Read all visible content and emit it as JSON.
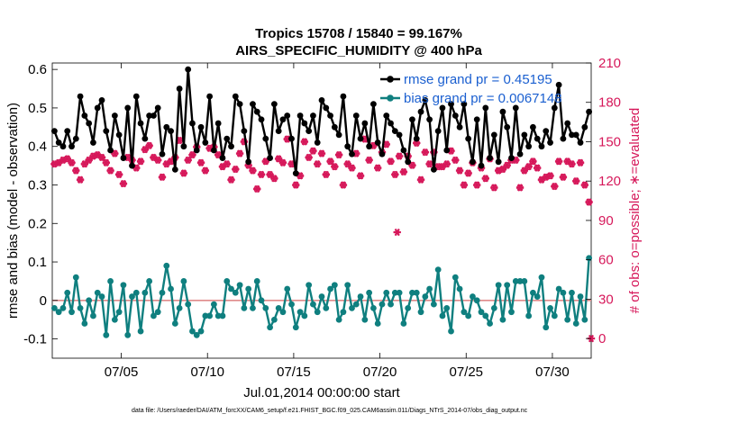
{
  "chart_data": {
    "type": "line",
    "title_line1": "Tropics 15708 / 15840 = 99.167%",
    "title_line2": "AIRS_SPECIFIC_HUMIDITY @ 400 hPa",
    "xlabel": "Jul.01,2014 00:00:00 start",
    "ylabel_left": "rmse and bias (model - observation)",
    "ylabel_right": "# of obs: o=possible; ∗=evaluated",
    "footer": "data file: /Users/raeder/DAI/ATM_forcXX/CAM6_setup/f.e21.FHIST_BGC.f09_025.CAM6assim.011/Diags_NTrS_2014-07/obs_diag_output.nc",
    "xlim": [
      1.0,
      32.25
    ],
    "ylim_left": [
      -0.15,
      0.6167
    ],
    "ylim_right": [
      -15,
      210
    ],
    "x_ticks": [
      5,
      10,
      15,
      20,
      25,
      30
    ],
    "x_tick_labels": [
      "07/05",
      "07/10",
      "07/15",
      "07/20",
      "07/25",
      "07/30"
    ],
    "y_ticks_left": [
      -0.1,
      0,
      0.1,
      0.2,
      0.3,
      0.4,
      0.5,
      0.6
    ],
    "y_tick_labels_left": [
      "-0.1",
      "0",
      "0.1",
      "0.2",
      "0.3",
      "0.4",
      "0.5",
      "0.6"
    ],
    "y_ticks_right": [
      0,
      30,
      60,
      90,
      120,
      150,
      180,
      210
    ],
    "y_tick_labels_right": [
      "0",
      "30",
      "60",
      "90",
      "120",
      "150",
      "180",
      "210"
    ],
    "zero_line": 0,
    "colors": {
      "rmse": "#000000",
      "bias": "#0f7f7f",
      "obs": "#d6185a",
      "legend_text": "#1a5fd0",
      "zero": "#e08a8a"
    },
    "legend": [
      {
        "label": "rmse grand pr = 0.45195",
        "series": "rmse"
      },
      {
        "label": "bias grand pr = 0.0067148",
        "series": "bias"
      }
    ],
    "series": [
      {
        "name": "rmse",
        "axis": "left",
        "x_start": 1.125,
        "x_step": 0.25,
        "values": [
          0.44,
          0.41,
          0.4,
          0.44,
          0.4,
          0.42,
          0.53,
          0.48,
          0.46,
          0.41,
          0.5,
          0.52,
          0.44,
          0.39,
          0.48,
          0.43,
          0.37,
          0.5,
          0.35,
          0.53,
          0.46,
          0.42,
          0.48,
          0.48,
          0.5,
          0.38,
          0.45,
          0.44,
          0.34,
          0.55,
          0.4,
          0.6,
          0.46,
          0.39,
          0.45,
          0.41,
          0.53,
          0.39,
          0.46,
          0.37,
          0.42,
          0.4,
          0.53,
          0.51,
          0.44,
          0.36,
          0.51,
          0.49,
          0.47,
          0.42,
          0.37,
          0.51,
          0.44,
          0.47,
          0.48,
          0.42,
          0.33,
          0.48,
          0.46,
          0.44,
          0.48,
          0.41,
          0.52,
          0.5,
          0.48,
          0.45,
          0.43,
          0.53,
          0.4,
          0.38,
          0.48,
          0.42,
          0.46,
          0.4,
          0.51,
          0.41,
          0.38,
          0.48,
          0.46,
          0.44,
          0.43,
          0.39,
          0.36,
          0.47,
          0.42,
          0.49,
          0.52,
          0.47,
          0.34,
          0.44,
          0.5,
          0.39,
          0.51,
          0.48,
          0.45,
          0.51,
          0.42,
          0.36,
          0.47,
          0.35,
          0.5,
          0.37,
          0.43,
          0.36,
          0.49,
          0.45,
          0.37,
          0.5,
          0.38,
          0.43,
          0.4,
          0.45,
          0.42,
          0.4,
          0.44,
          0.41,
          0.5,
          0.56,
          0.42,
          0.46,
          0.43,
          0.43,
          0.41,
          0.45,
          0.49
        ]
      },
      {
        "name": "bias",
        "axis": "left",
        "x_start": 1.125,
        "x_step": 0.25,
        "values": [
          -0.02,
          -0.03,
          -0.02,
          0.02,
          -0.03,
          0.06,
          -0.02,
          -0.06,
          0.0,
          -0.04,
          0.02,
          0.01,
          -0.09,
          0.05,
          -0.05,
          -0.03,
          0.04,
          -0.09,
          0.01,
          0.02,
          -0.08,
          0.02,
          0.05,
          -0.04,
          -0.03,
          0.02,
          0.09,
          0.03,
          -0.06,
          -0.02,
          0.05,
          -0.01,
          -0.08,
          -0.09,
          -0.08,
          -0.04,
          -0.04,
          -0.01,
          -0.04,
          -0.04,
          0.05,
          0.03,
          0.02,
          0.04,
          -0.02,
          0.03,
          -0.02,
          0.05,
          0.0,
          -0.02,
          -0.07,
          -0.05,
          -0.02,
          -0.03,
          0.03,
          -0.01,
          -0.07,
          -0.03,
          -0.04,
          0.04,
          -0.01,
          -0.03,
          0.01,
          -0.02,
          0.03,
          0.04,
          -0.05,
          -0.03,
          0.04,
          -0.02,
          -0.01,
          0.01,
          -0.05,
          0.02,
          -0.02,
          -0.06,
          -0.01,
          0.02,
          -0.01,
          0.02,
          0.02,
          -0.06,
          -0.02,
          0.02,
          0.02,
          -0.03,
          0.01,
          0.03,
          -0.01,
          0.08,
          -0.04,
          -0.02,
          -0.08,
          0.06,
          0.03,
          -0.03,
          -0.04,
          0.01,
          0.0,
          -0.03,
          -0.04,
          -0.06,
          -0.02,
          0.04,
          -0.05,
          0.04,
          -0.03,
          0.05,
          0.05,
          0.05,
          -0.04,
          0.02,
          0.01,
          0.06,
          -0.07,
          -0.02,
          -0.04,
          0.03,
          0.02,
          -0.05,
          0.02,
          -0.06,
          0.01,
          -0.05,
          0.11
        ]
      },
      {
        "name": "obs_possible",
        "axis": "right",
        "marker": "o",
        "x_start": 1.125,
        "x_step": 0.25,
        "values": [
          133,
          134,
          136,
          137,
          134,
          128,
          121,
          133,
          136,
          139,
          140,
          138,
          134,
          128,
          141,
          125,
          118,
          138,
          136,
          130,
          135,
          144,
          147,
          138,
          136,
          123,
          133,
          135,
          138,
          151,
          126,
          136,
          140,
          146,
          134,
          128,
          145,
          146,
          140,
          131,
          133,
          121,
          129,
          141,
          150,
          132,
          128,
          114,
          125,
          135,
          125,
          122,
          137,
          134,
          152,
          133,
          117,
          124,
          150,
          138,
          143,
          133,
          141,
          125,
          135,
          131,
          140,
          117,
          133,
          130,
          141,
          124,
          152,
          136,
          147,
          130,
          142,
          148,
          135,
          125,
          139,
          127,
          139,
          132,
          149,
          121,
          142,
          133,
          142,
          131,
          131,
          133,
          143,
          136,
          128,
          117,
          126,
          134,
          117,
          130,
          122,
          137,
          115,
          128,
          129,
          132,
          136,
          136,
          115,
          128,
          131,
          135,
          130,
          121,
          123,
          124,
          116,
          135,
          123,
          135,
          133,
          120,
          134,
          117,
          104
        ]
      },
      {
        "name": "obs_evaluated",
        "axis": "right",
        "marker": "*",
        "x_start": 1.125,
        "x_step": 0.25,
        "values": [
          133,
          134,
          136,
          137,
          134,
          128,
          121,
          133,
          136,
          139,
          140,
          138,
          134,
          128,
          141,
          125,
          118,
          138,
          136,
          130,
          135,
          144,
          147,
          138,
          136,
          123,
          133,
          135,
          138,
          151,
          126,
          136,
          140,
          146,
          134,
          128,
          145,
          146,
          140,
          131,
          133,
          121,
          129,
          141,
          150,
          132,
          128,
          114,
          125,
          135,
          125,
          122,
          137,
          134,
          152,
          133,
          117,
          124,
          150,
          138,
          143,
          133,
          141,
          125,
          135,
          131,
          140,
          117,
          133,
          130,
          141,
          124,
          152,
          136,
          147,
          130,
          142,
          148,
          135,
          125,
          139,
          127,
          139,
          132,
          149,
          121,
          142,
          133,
          142,
          131,
          131,
          133,
          143,
          136,
          128,
          117,
          126,
          134,
          117,
          130,
          122,
          137,
          115,
          128,
          129,
          132,
          136,
          136,
          115,
          128,
          131,
          135,
          130,
          121,
          123,
          124,
          116,
          135,
          123,
          135,
          133,
          120,
          134,
          117,
          104
        ]
      }
    ],
    "extra_points": [
      {
        "name": "obs_zero_end",
        "axis": "right",
        "x": 32.25,
        "y": 0,
        "marker": "*"
      },
      {
        "name": "obs_outlier",
        "axis": "right",
        "x": 21.0,
        "y": 81,
        "marker": "*"
      }
    ]
  }
}
